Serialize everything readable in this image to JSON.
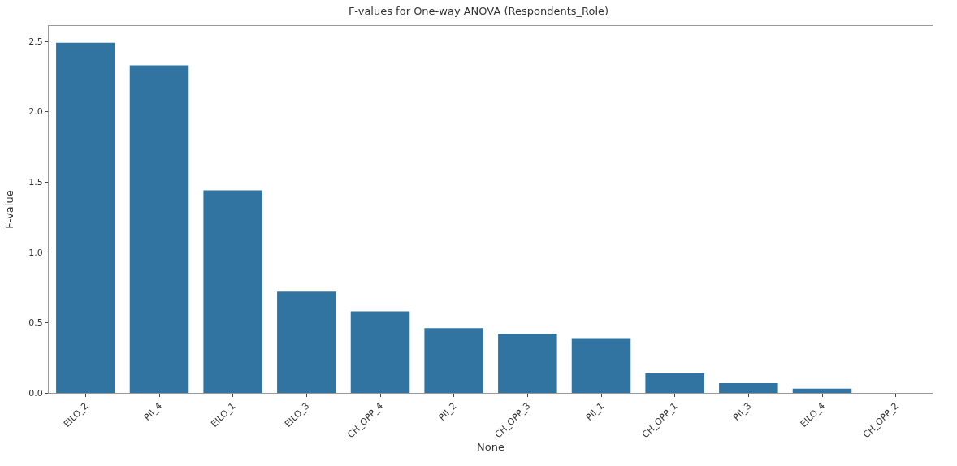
{
  "chart_data": {
    "type": "bar",
    "title": "F-values for One-way ANOVA (Respondents_Role)",
    "xlabel": "None",
    "ylabel": "F-value",
    "categories": [
      "EILO_2",
      "PII_4",
      "EILO_1",
      "EILO_3",
      "CH_OPP_4",
      "PII_2",
      "CH_OPP_3",
      "PII_1",
      "CH_OPP_1",
      "PII_3",
      "EILO_4",
      "CH_OPP_2"
    ],
    "values": [
      2.49,
      2.33,
      1.44,
      0.72,
      0.58,
      0.46,
      0.42,
      0.39,
      0.14,
      0.07,
      0.03,
      0.0
    ],
    "color": "#3274a1",
    "ylim": [
      0,
      2.61
    ],
    "yticks": [
      {
        "value": 0,
        "label": "0.0"
      },
      {
        "value": 0.5,
        "label": "0.5"
      },
      {
        "value": 1,
        "label": "1.0"
      },
      {
        "value": 1.5,
        "label": "1.5"
      },
      {
        "value": 2,
        "label": "2.0"
      },
      {
        "value": 2.5,
        "label": "2.5"
      }
    ]
  }
}
